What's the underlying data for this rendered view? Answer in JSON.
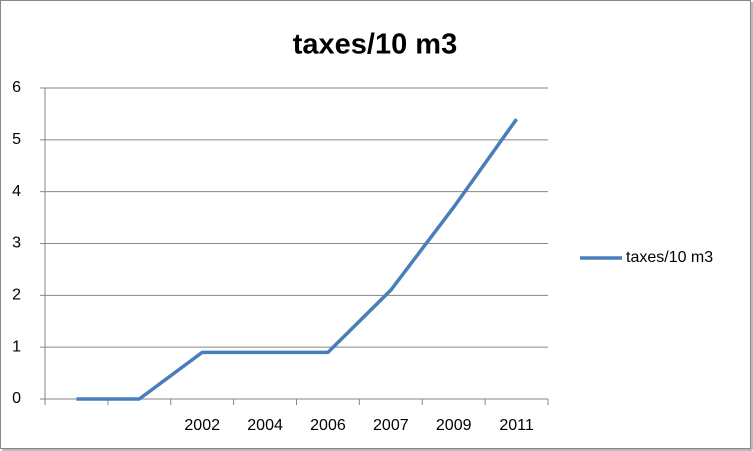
{
  "chart_data": {
    "type": "line",
    "title": "taxes/10 m3",
    "categories": [
      null,
      null,
      "2002",
      "2004",
      "2006",
      "2007",
      "2009",
      "2011"
    ],
    "series": [
      {
        "name": "taxes/10 m3",
        "color": "#4a7ebb",
        "values": [
          0,
          0,
          0.9,
          0.9,
          0.9,
          2.1,
          3.7,
          5.4
        ]
      }
    ],
    "ylim": [
      0,
      6
    ],
    "yticks": [
      0,
      1,
      2,
      3,
      4,
      5,
      6
    ],
    "grid": true,
    "legend": "right"
  }
}
